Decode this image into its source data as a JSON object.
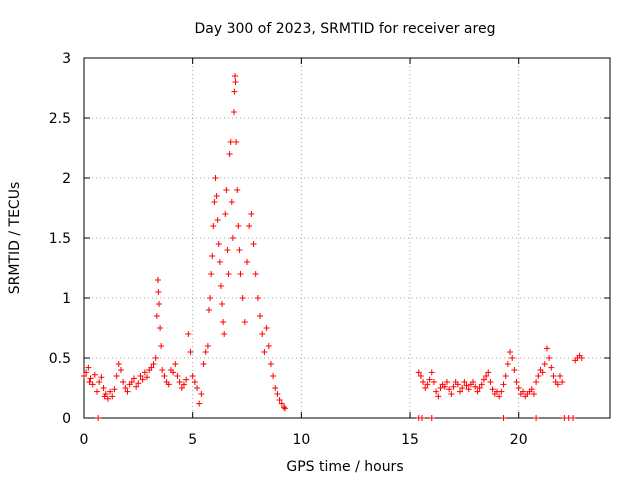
{
  "chart_data": {
    "type": "scatter",
    "title": "Day 300 of 2023, SRMTID for receiver areg",
    "xlabel": "GPS time / hours",
    "ylabel": "SRMTID / TECUs",
    "xlim": [
      0,
      24.2
    ],
    "ylim": [
      0,
      3
    ],
    "xticks": [
      0,
      5,
      10,
      15,
      20
    ],
    "xtick_labels": [
      "0",
      "5",
      "10",
      "15",
      "20"
    ],
    "yticks": [
      0,
      0.5,
      1,
      1.5,
      2,
      2.5,
      3
    ],
    "ytick_labels": [
      "0",
      "0.5",
      "1",
      "1.5",
      "2",
      "2.5",
      "3"
    ],
    "grid": true,
    "marker": "plus",
    "color": "#ff0000",
    "series": [
      {
        "name": "SRMTID",
        "points": [
          [
            0.0,
            0.35
          ],
          [
            0.1,
            0.38
          ],
          [
            0.2,
            0.42
          ],
          [
            0.25,
            0.3
          ],
          [
            0.3,
            0.33
          ],
          [
            0.4,
            0.28
          ],
          [
            0.5,
            0.36
          ],
          [
            0.6,
            0.22
          ],
          [
            0.7,
            0.3
          ],
          [
            0.8,
            0.34
          ],
          [
            0.9,
            0.25
          ],
          [
            0.95,
            0.18
          ],
          [
            1.0,
            0.2
          ],
          [
            1.1,
            0.16
          ],
          [
            1.2,
            0.22
          ],
          [
            1.3,
            0.18
          ],
          [
            1.4,
            0.24
          ],
          [
            1.5,
            0.35
          ],
          [
            1.6,
            0.45
          ],
          [
            1.7,
            0.4
          ],
          [
            1.8,
            0.3
          ],
          [
            1.9,
            0.25
          ],
          [
            2.0,
            0.22
          ],
          [
            2.1,
            0.28
          ],
          [
            2.2,
            0.3
          ],
          [
            2.3,
            0.33
          ],
          [
            2.4,
            0.26
          ],
          [
            2.5,
            0.29
          ],
          [
            2.6,
            0.35
          ],
          [
            2.7,
            0.32
          ],
          [
            2.8,
            0.38
          ],
          [
            2.9,
            0.34
          ],
          [
            3.0,
            0.4
          ],
          [
            3.1,
            0.42
          ],
          [
            3.2,
            0.45
          ],
          [
            3.3,
            0.5
          ],
          [
            3.35,
            0.85
          ],
          [
            3.4,
            1.15
          ],
          [
            3.42,
            1.05
          ],
          [
            3.45,
            0.95
          ],
          [
            3.5,
            0.75
          ],
          [
            3.55,
            0.6
          ],
          [
            3.6,
            0.4
          ],
          [
            3.7,
            0.35
          ],
          [
            3.8,
            0.3
          ],
          [
            3.9,
            0.28
          ],
          [
            4.0,
            0.4
          ],
          [
            4.1,
            0.38
          ],
          [
            4.2,
            0.45
          ],
          [
            4.3,
            0.35
          ],
          [
            4.4,
            0.3
          ],
          [
            4.5,
            0.25
          ],
          [
            4.6,
            0.28
          ],
          [
            4.7,
            0.32
          ],
          [
            4.8,
            0.7
          ],
          [
            4.9,
            0.55
          ],
          [
            5.0,
            0.35
          ],
          [
            5.1,
            0.3
          ],
          [
            5.2,
            0.25
          ],
          [
            5.3,
            0.12
          ],
          [
            5.4,
            0.2
          ],
          [
            5.5,
            0.45
          ],
          [
            5.6,
            0.55
          ],
          [
            5.7,
            0.6
          ],
          [
            5.75,
            0.9
          ],
          [
            5.8,
            1.0
          ],
          [
            5.85,
            1.2
          ],
          [
            5.9,
            1.35
          ],
          [
            5.95,
            1.6
          ],
          [
            6.0,
            1.8
          ],
          [
            6.05,
            2.0
          ],
          [
            6.1,
            1.85
          ],
          [
            6.15,
            1.65
          ],
          [
            6.2,
            1.45
          ],
          [
            6.25,
            1.3
          ],
          [
            6.3,
            1.1
          ],
          [
            6.35,
            0.95
          ],
          [
            6.4,
            0.8
          ],
          [
            6.45,
            0.7
          ],
          [
            6.5,
            1.7
          ],
          [
            6.55,
            1.9
          ],
          [
            6.6,
            1.4
          ],
          [
            6.65,
            1.2
          ],
          [
            6.7,
            2.2
          ],
          [
            6.75,
            2.3
          ],
          [
            6.8,
            1.8
          ],
          [
            6.85,
            1.5
          ],
          [
            6.9,
            2.55
          ],
          [
            6.92,
            2.72
          ],
          [
            6.95,
            2.85
          ],
          [
            6.97,
            2.8
          ],
          [
            7.0,
            2.3
          ],
          [
            7.05,
            1.9
          ],
          [
            7.1,
            1.6
          ],
          [
            7.15,
            1.4
          ],
          [
            7.2,
            1.2
          ],
          [
            7.3,
            1.0
          ],
          [
            7.4,
            0.8
          ],
          [
            7.5,
            1.3
          ],
          [
            7.6,
            1.6
          ],
          [
            7.7,
            1.7
          ],
          [
            7.8,
            1.45
          ],
          [
            7.9,
            1.2
          ],
          [
            8.0,
            1.0
          ],
          [
            8.1,
            0.85
          ],
          [
            8.2,
            0.7
          ],
          [
            8.3,
            0.55
          ],
          [
            8.4,
            0.75
          ],
          [
            8.5,
            0.6
          ],
          [
            8.6,
            0.45
          ],
          [
            8.7,
            0.35
          ],
          [
            8.8,
            0.25
          ],
          [
            8.9,
            0.2
          ],
          [
            9.0,
            0.15
          ],
          [
            9.1,
            0.12
          ],
          [
            9.2,
            0.09
          ],
          [
            9.25,
            0.08
          ],
          [
            15.4,
            0.38
          ],
          [
            15.5,
            0.35
          ],
          [
            15.6,
            0.3
          ],
          [
            15.7,
            0.25
          ],
          [
            15.8,
            0.28
          ],
          [
            15.9,
            0.32
          ],
          [
            16.0,
            0.38
          ],
          [
            16.1,
            0.3
          ],
          [
            16.2,
            0.22
          ],
          [
            16.3,
            0.18
          ],
          [
            16.4,
            0.25
          ],
          [
            16.5,
            0.28
          ],
          [
            16.6,
            0.26
          ],
          [
            16.7,
            0.3
          ],
          [
            16.8,
            0.24
          ],
          [
            16.9,
            0.2
          ],
          [
            17.0,
            0.26
          ],
          [
            17.1,
            0.3
          ],
          [
            17.2,
            0.28
          ],
          [
            17.3,
            0.22
          ],
          [
            17.4,
            0.25
          ],
          [
            17.5,
            0.3
          ],
          [
            17.6,
            0.27
          ],
          [
            17.7,
            0.24
          ],
          [
            17.8,
            0.28
          ],
          [
            17.9,
            0.3
          ],
          [
            18.0,
            0.26
          ],
          [
            18.1,
            0.22
          ],
          [
            18.2,
            0.25
          ],
          [
            18.3,
            0.28
          ],
          [
            18.4,
            0.32
          ],
          [
            18.5,
            0.35
          ],
          [
            18.6,
            0.38
          ],
          [
            18.7,
            0.3
          ],
          [
            18.8,
            0.24
          ],
          [
            18.9,
            0.2
          ],
          [
            19.0,
            0.22
          ],
          [
            19.1,
            0.18
          ],
          [
            19.2,
            0.22
          ],
          [
            19.3,
            0.28
          ],
          [
            19.4,
            0.35
          ],
          [
            19.5,
            0.45
          ],
          [
            19.6,
            0.55
          ],
          [
            19.7,
            0.5
          ],
          [
            19.8,
            0.4
          ],
          [
            19.9,
            0.3
          ],
          [
            20.0,
            0.25
          ],
          [
            20.1,
            0.2
          ],
          [
            20.2,
            0.22
          ],
          [
            20.3,
            0.18
          ],
          [
            20.4,
            0.2
          ],
          [
            20.5,
            0.22
          ],
          [
            20.6,
            0.24
          ],
          [
            20.7,
            0.2
          ],
          [
            20.8,
            0.3
          ],
          [
            20.9,
            0.35
          ],
          [
            21.0,
            0.4
          ],
          [
            21.1,
            0.38
          ],
          [
            21.2,
            0.45
          ],
          [
            21.3,
            0.58
          ],
          [
            21.4,
            0.5
          ],
          [
            21.5,
            0.42
          ],
          [
            21.6,
            0.35
          ],
          [
            21.7,
            0.3
          ],
          [
            21.8,
            0.28
          ],
          [
            21.9,
            0.35
          ],
          [
            22.0,
            0.3
          ],
          [
            22.6,
            0.48
          ],
          [
            22.7,
            0.5
          ],
          [
            22.8,
            0.52
          ],
          [
            22.9,
            0.5
          ],
          [
            0.65,
            0.0
          ],
          [
            15.4,
            0.0
          ],
          [
            15.55,
            0.0
          ],
          [
            16.0,
            0.0
          ],
          [
            19.3,
            0.0
          ],
          [
            20.8,
            0.0
          ],
          [
            22.1,
            0.0
          ],
          [
            22.3,
            0.0
          ],
          [
            22.5,
            0.0
          ]
        ]
      }
    ]
  }
}
